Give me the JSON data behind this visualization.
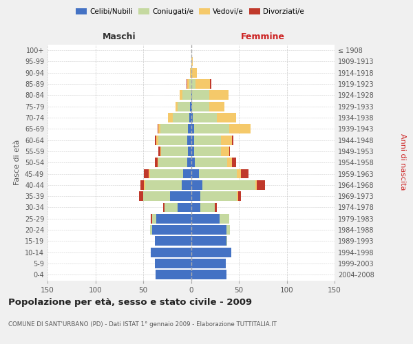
{
  "age_groups": [
    "0-4",
    "5-9",
    "10-14",
    "15-19",
    "20-24",
    "25-29",
    "30-34",
    "35-39",
    "40-44",
    "45-49",
    "50-54",
    "55-59",
    "60-64",
    "65-69",
    "70-74",
    "75-79",
    "80-84",
    "85-89",
    "90-94",
    "95-99",
    "100+"
  ],
  "birth_years": [
    "2004-2008",
    "1999-2003",
    "1994-1998",
    "1989-1993",
    "1984-1988",
    "1979-1983",
    "1974-1978",
    "1969-1973",
    "1964-1968",
    "1959-1963",
    "1954-1958",
    "1949-1953",
    "1944-1948",
    "1939-1943",
    "1934-1938",
    "1929-1933",
    "1924-1928",
    "1919-1923",
    "1914-1918",
    "1909-1913",
    "≤ 1908"
  ],
  "colors": {
    "celibi": "#4472c4",
    "coniugati": "#c5d9a0",
    "vedovi": "#f5c96a",
    "divorziati": "#c0392b"
  },
  "male": {
    "celibi": [
      37,
      38,
      42,
      38,
      41,
      36,
      14,
      22,
      10,
      8,
      4,
      3,
      4,
      3,
      2,
      1,
      0,
      0,
      0,
      0,
      0
    ],
    "coniugati": [
      0,
      0,
      0,
      0,
      2,
      5,
      14,
      28,
      38,
      35,
      30,
      28,
      30,
      29,
      17,
      13,
      9,
      2,
      0,
      0,
      0
    ],
    "vedovi": [
      0,
      0,
      0,
      0,
      0,
      0,
      0,
      0,
      1,
      1,
      1,
      1,
      2,
      2,
      5,
      2,
      3,
      2,
      1,
      0,
      0
    ],
    "divorziati": [
      0,
      0,
      0,
      0,
      0,
      1,
      1,
      4,
      4,
      5,
      3,
      2,
      2,
      1,
      0,
      0,
      0,
      1,
      0,
      0,
      0
    ]
  },
  "female": {
    "nubili": [
      37,
      36,
      42,
      37,
      37,
      30,
      10,
      10,
      12,
      8,
      4,
      3,
      3,
      3,
      2,
      1,
      1,
      0,
      0,
      0,
      0
    ],
    "coniugate": [
      0,
      0,
      0,
      1,
      4,
      10,
      15,
      38,
      55,
      40,
      34,
      28,
      28,
      37,
      25,
      18,
      18,
      5,
      1,
      0,
      0
    ],
    "vedove": [
      0,
      0,
      0,
      0,
      0,
      0,
      0,
      1,
      2,
      4,
      5,
      9,
      12,
      22,
      20,
      16,
      20,
      15,
      5,
      2,
      0
    ],
    "divorziate": [
      0,
      0,
      0,
      0,
      0,
      0,
      2,
      3,
      8,
      8,
      4,
      1,
      1,
      0,
      0,
      0,
      0,
      1,
      0,
      0,
      0
    ]
  },
  "title": "Popolazione per età, sesso e stato civile - 2009",
  "subtitle": "COMUNE DI SANT'URBANO (PD) - Dati ISTAT 1° gennaio 2009 - Elaborazione TUTTITALIA.IT",
  "xlabel_left": "Maschi",
  "xlabel_right": "Femmine",
  "ylabel_left": "Fasce di età",
  "ylabel_right": "Anni di nascita",
  "xlim": 150,
  "bg_color": "#f0f0f0",
  "plot_bg_color": "#ffffff",
  "grid_color": "#cccccc"
}
